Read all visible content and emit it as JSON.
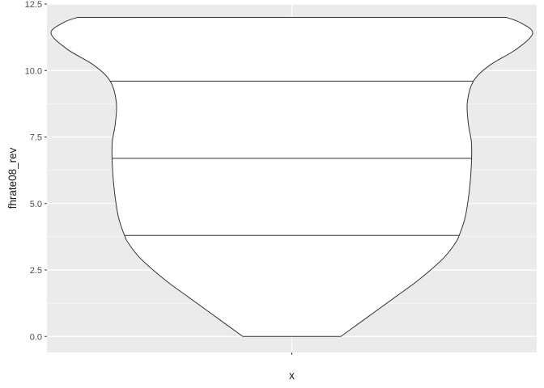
{
  "chart_data": {
    "type": "violin",
    "title": "",
    "xlabel": "x",
    "ylabel": "fhrate08_rev",
    "x_categories": [
      ""
    ],
    "ylim": [
      -0.6,
      12.5
    ],
    "y_ticks": [
      {
        "value": 0,
        "label": "0.0"
      },
      {
        "value": 2.5,
        "label": "2.5"
      },
      {
        "value": 5,
        "label": "5.0"
      },
      {
        "value": 7.5,
        "label": "7.5"
      },
      {
        "value": 10,
        "label": "10.0"
      },
      {
        "value": 12.5,
        "label": "12.5"
      }
    ],
    "y_minor_ticks": [
      1.25,
      3.75,
      6.25,
      8.75,
      11.25
    ],
    "grid": true,
    "panel_background": "#ebebeb",
    "grid_color": "#ffffff",
    "violin_fill": "#ffffff",
    "violin_outline": "#333333",
    "quantiles": [
      3.8,
      6.7,
      9.6
    ],
    "density_profile": [
      {
        "y": 0.0,
        "half_width": 0.24
      },
      {
        "y": 0.5,
        "half_width": 0.33
      },
      {
        "y": 1.0,
        "half_width": 0.42
      },
      {
        "y": 1.5,
        "half_width": 0.51
      },
      {
        "y": 2.0,
        "half_width": 0.6
      },
      {
        "y": 2.5,
        "half_width": 0.68
      },
      {
        "y": 3.0,
        "half_width": 0.75
      },
      {
        "y": 3.5,
        "half_width": 0.8
      },
      {
        "y": 3.8,
        "half_width": 0.82
      },
      {
        "y": 4.5,
        "half_width": 0.85
      },
      {
        "y": 5.5,
        "half_width": 0.87
      },
      {
        "y": 6.5,
        "half_width": 0.88
      },
      {
        "y": 7.3,
        "half_width": 0.88
      },
      {
        "y": 8.0,
        "half_width": 0.865
      },
      {
        "y": 8.8,
        "half_width": 0.86
      },
      {
        "y": 9.6,
        "half_width": 0.89
      },
      {
        "y": 10.2,
        "half_width": 0.97
      },
      {
        "y": 10.8,
        "half_width": 1.1
      },
      {
        "y": 11.4,
        "half_width": 1.18
      },
      {
        "y": 11.8,
        "half_width": 1.12
      },
      {
        "y": 12.0,
        "half_width": 1.05
      }
    ]
  }
}
